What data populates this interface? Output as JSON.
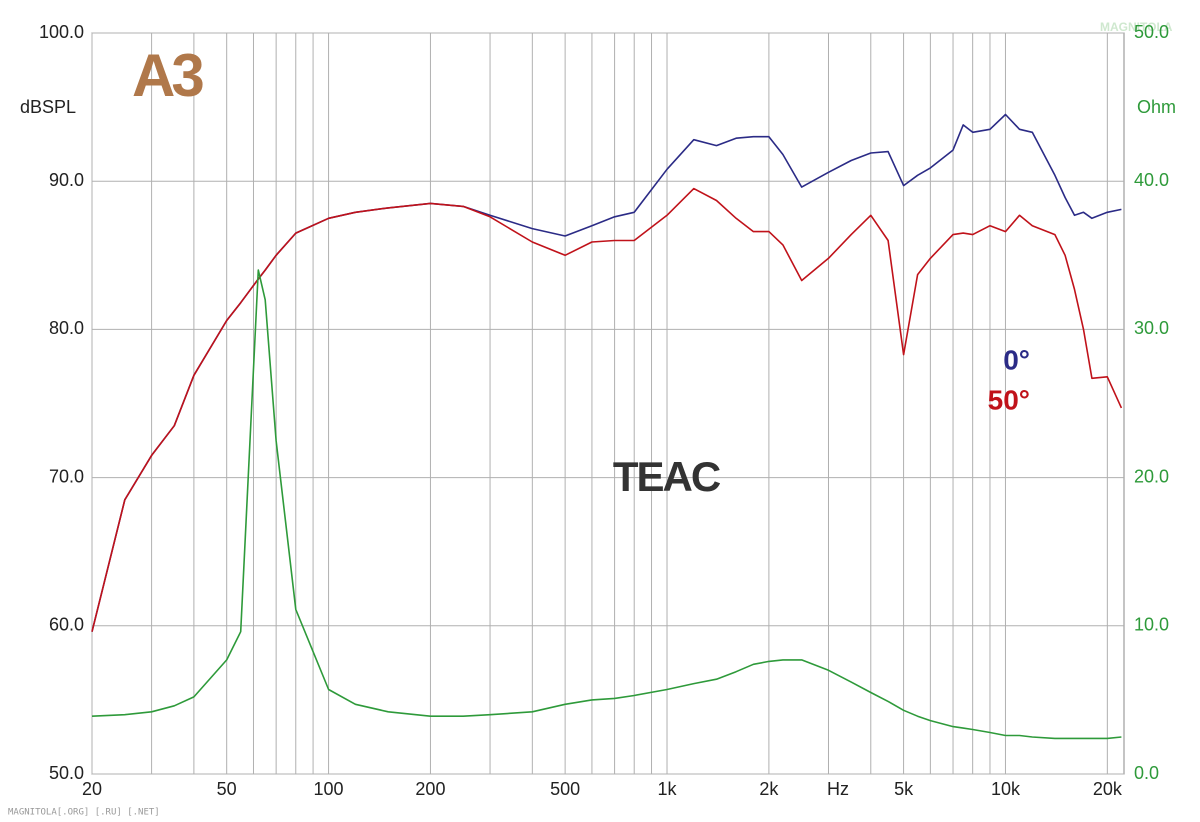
{
  "chart_data": {
    "type": "line",
    "logo": "A3",
    "annotations": [
      "TEAC"
    ],
    "watermark": "MAGNITOLA[.ORG] [.RU] [.NET]",
    "corner_watermark": "MAGNITOLA",
    "y_label": "dBSPL",
    "y2_label": "Ohm",
    "x_label": "Hz",
    "x_log": true,
    "grid": true,
    "x": [
      20,
      25,
      30,
      35,
      40,
      50,
      55,
      62,
      65,
      70,
      80,
      100,
      120,
      150,
      200,
      250,
      300,
      400,
      500,
      600,
      700,
      800,
      1000,
      1200,
      1400,
      1600,
      1800,
      2000,
      2200,
      2500,
      3000,
      3500,
      4000,
      4500,
      5000,
      5500,
      6000,
      7000,
      7500,
      8000,
      9000,
      10000,
      11000,
      12000,
      14000,
      15000,
      16000,
      17000,
      18000,
      20000,
      22000
    ],
    "series": [
      {
        "name": "0°",
        "color": "#2b2b86",
        "values": [
          59.6,
          68.5,
          71.5,
          73.5,
          76.9,
          80.6,
          81.8,
          83.4,
          84.0,
          85.0,
          86.5,
          87.5,
          87.9,
          88.2,
          88.5,
          88.3,
          87.7,
          86.8,
          86.3,
          87.0,
          87.6,
          87.9,
          90.8,
          92.8,
          92.4,
          92.9,
          93.0,
          93.0,
          91.8,
          89.6,
          90.6,
          91.4,
          91.9,
          92.0,
          89.7,
          90.4,
          90.9,
          92.1,
          93.8,
          93.3,
          93.5,
          94.5,
          93.5,
          93.3,
          90.4,
          88.9,
          87.7,
          87.9,
          87.5,
          87.9,
          88.1
        ]
      },
      {
        "name": "50°",
        "color": "#c0121a",
        "values": [
          59.6,
          68.5,
          71.5,
          73.5,
          76.9,
          80.6,
          81.8,
          83.4,
          84.0,
          85.0,
          86.5,
          87.5,
          87.9,
          88.2,
          88.5,
          88.3,
          87.6,
          85.9,
          85.0,
          85.9,
          86.0,
          86.0,
          87.7,
          89.5,
          88.7,
          87.5,
          86.6,
          86.6,
          85.7,
          83.3,
          84.8,
          86.4,
          87.7,
          86.0,
          78.3,
          83.7,
          84.8,
          86.4,
          86.5,
          86.4,
          87.0,
          86.6,
          87.7,
          87.0,
          86.4,
          85.0,
          82.7,
          80.0,
          76.7,
          76.8,
          74.7
        ]
      },
      {
        "color": "#2e9a3a",
        "axis": "y2",
        "values": [
          3.9,
          4.0,
          4.2,
          4.6,
          5.2,
          7.7,
          9.6,
          34.0,
          32.0,
          22.5,
          11.1,
          5.7,
          4.7,
          4.2,
          3.9,
          3.9,
          4.0,
          4.2,
          4.7,
          5.0,
          5.1,
          5.3,
          5.7,
          6.1,
          6.4,
          6.9,
          7.4,
          7.6,
          7.7,
          7.7,
          7.0,
          6.2,
          5.5,
          4.9,
          4.3,
          3.9,
          3.6,
          3.2,
          3.1,
          3.0,
          2.8,
          2.6,
          2.6,
          2.5,
          2.4,
          2.4,
          2.4,
          2.4,
          2.4,
          2.4,
          2.5
        ]
      }
    ],
    "xlim": [
      20,
      22400
    ],
    "xticks": [
      20,
      50,
      100,
      200,
      500,
      {
        "value": 1000,
        "label": "1k"
      },
      {
        "value": 2000,
        "label": "2k"
      },
      {
        "value": 5000,
        "label": "5k"
      },
      {
        "value": 10000,
        "label": "10k"
      },
      {
        "value": 20000,
        "label": "20k"
      }
    ],
    "xminor_ticks": [
      30,
      40,
      60,
      70,
      80,
      90,
      300,
      400,
      600,
      700,
      800,
      900,
      3000,
      4000,
      6000,
      7000,
      8000,
      9000
    ],
    "ylim": [
      50,
      100
    ],
    "yticks": [
      {
        "value": 50,
        "label": "50.0"
      },
      {
        "value": 60,
        "label": "60.0"
      },
      {
        "value": 70,
        "label": "70.0"
      },
      {
        "value": 80,
        "label": "80.0"
      },
      {
        "value": 90,
        "label": "90.0"
      },
      {
        "value": 100,
        "label": "100.0"
      }
    ],
    "y2lim": [
      0,
      50
    ],
    "y2ticks": [
      {
        "value": 0,
        "label": "0.0"
      },
      {
        "value": 10,
        "label": "10.0"
      },
      {
        "value": 20,
        "label": "20.0"
      },
      {
        "value": 30,
        "label": "30.0"
      },
      {
        "value": 40,
        "label": "40.0"
      },
      {
        "value": 50,
        "label": "50.0"
      }
    ]
  }
}
